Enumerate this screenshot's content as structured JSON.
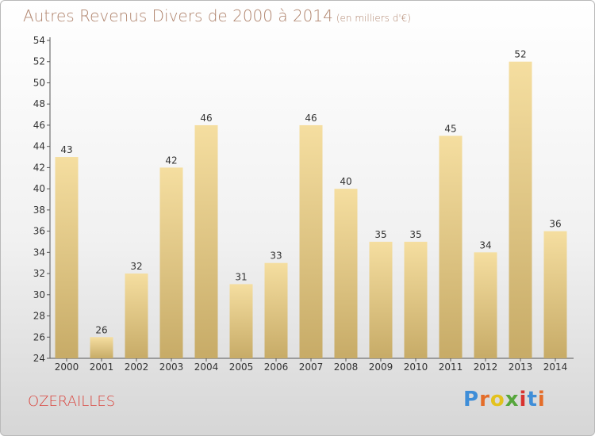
{
  "header": {
    "title": "Autres Revenus Divers de 2000 à 2014",
    "unit": "(en milliers d'€)"
  },
  "footer": {
    "city": "OZERAILLES",
    "brand": "Proxiti"
  },
  "colors": {
    "bar_top": "#f5dea0",
    "bar_bottom": "#c7ab67",
    "title": "#b0846d",
    "city": "#d9433c"
  },
  "chart_data": {
    "type": "bar",
    "title": "Autres Revenus Divers de 2000 à 2014",
    "subtitle": "(en milliers d'€)",
    "categories": [
      "2000",
      "2001",
      "2002",
      "2003",
      "2004",
      "2005",
      "2006",
      "2007",
      "2008",
      "2009",
      "2010",
      "2011",
      "2012",
      "2013",
      "2014"
    ],
    "values": [
      43,
      26,
      32,
      42,
      46,
      31,
      33,
      46,
      40,
      35,
      35,
      45,
      34,
      52,
      36
    ],
    "ylim": [
      24,
      54
    ],
    "yticks": [
      24,
      26,
      28,
      30,
      32,
      34,
      36,
      38,
      40,
      42,
      44,
      46,
      48,
      50,
      52,
      54
    ],
    "grid": false,
    "data_labels": true
  }
}
